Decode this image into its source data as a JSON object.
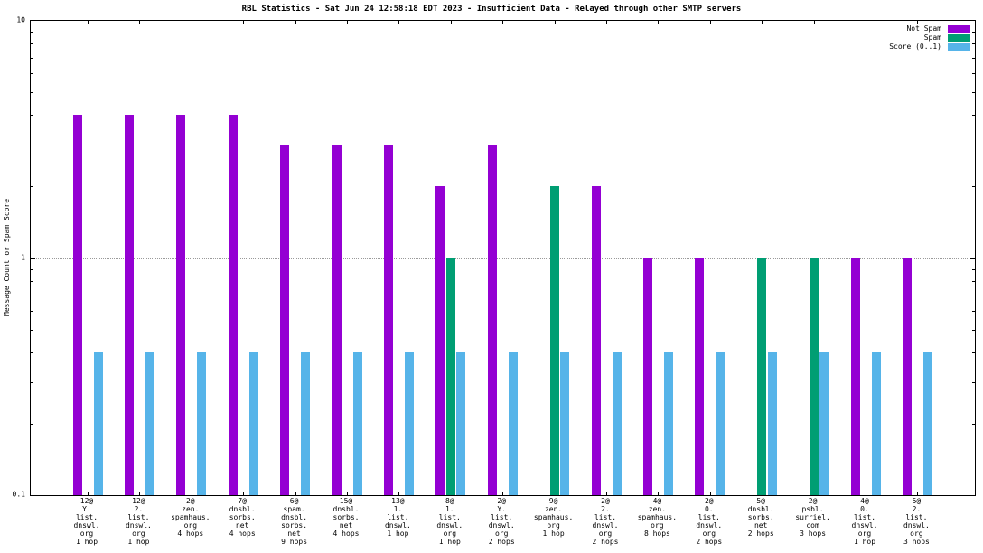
{
  "chart_data": {
    "type": "bar",
    "title": "RBL Statistics - Sat Jun 24 12:58:18 EDT 2023 - Insufficient Data - Relayed through other SMTP servers",
    "xlabel": "",
    "ylabel": "Message Count or Spam Score",
    "yscale": "log",
    "ylim": [
      0.1,
      10
    ],
    "grid": "dotted horizontal line at y=1",
    "legend_position": "top-right",
    "series_names": [
      "Not Spam",
      "Spam",
      "Score (0..1)"
    ],
    "series_colors": [
      "#9400d3",
      "#009e73",
      "#56b4e9"
    ],
    "y_ticks": [
      {
        "label": "10",
        "value": 10
      },
      {
        "label": "1",
        "value": 1
      },
      {
        "label": "0.1",
        "value": 0.1
      }
    ],
    "clusters": [
      {
        "label_lines": [
          "12@",
          "Y.",
          "list.",
          "dnswl.",
          "org",
          "1 hop"
        ],
        "not_spam": 4,
        "spam": null,
        "score": 0.4
      },
      {
        "label_lines": [
          "12@",
          "2.",
          "list.",
          "dnswl.",
          "org",
          "1 hop"
        ],
        "not_spam": 4,
        "spam": null,
        "score": 0.4
      },
      {
        "label_lines": [
          "2@",
          "zen.",
          "spamhaus.",
          "org",
          "4 hops"
        ],
        "not_spam": 4,
        "spam": null,
        "score": 0.4
      },
      {
        "label_lines": [
          "7@",
          "dnsbl.",
          "sorbs.",
          "net",
          "4 hops"
        ],
        "not_spam": 4,
        "spam": null,
        "score": 0.4
      },
      {
        "label_lines": [
          "6@",
          "spam.",
          "dnsbl.",
          "sorbs.",
          "net",
          "9 hops"
        ],
        "not_spam": 3,
        "spam": null,
        "score": 0.4
      },
      {
        "label_lines": [
          "15@",
          "dnsbl.",
          "sorbs.",
          "net",
          "4 hops"
        ],
        "not_spam": 3,
        "spam": null,
        "score": 0.4
      },
      {
        "label_lines": [
          "13@",
          "1.",
          "list.",
          "dnswl.",
          "1 hop"
        ],
        "not_spam": 3,
        "spam": null,
        "score": 0.4
      },
      {
        "label_lines": [
          "8@",
          "1.",
          "list.",
          "dnswl.",
          "org",
          "1 hop"
        ],
        "not_spam": 2,
        "spam": 1,
        "score": 0.4
      },
      {
        "label_lines": [
          "2@",
          "Y.",
          "list.",
          "dnswl.",
          "org",
          "2 hops"
        ],
        "not_spam": 3,
        "spam": null,
        "score": 0.4
      },
      {
        "label_lines": [
          "9@",
          "zen.",
          "spamhaus.",
          "org",
          "1 hop"
        ],
        "not_spam": null,
        "spam": 2,
        "score": 0.4
      },
      {
        "label_lines": [
          "2@",
          "2.",
          "list.",
          "dnswl.",
          "org",
          "2 hops"
        ],
        "not_spam": 2,
        "spam": null,
        "score": 0.4
      },
      {
        "label_lines": [
          "4@",
          "zen.",
          "spamhaus.",
          "org",
          "8 hops"
        ],
        "not_spam": 1,
        "spam": null,
        "score": 0.4
      },
      {
        "label_lines": [
          "2@",
          "0.",
          "list.",
          "dnswl.",
          "org",
          "2 hops"
        ],
        "not_spam": 1,
        "spam": null,
        "score": 0.4
      },
      {
        "label_lines": [
          "5@",
          "dnsbl.",
          "sorbs.",
          "net",
          "2 hops"
        ],
        "not_spam": null,
        "spam": 1,
        "score": 0.4
      },
      {
        "label_lines": [
          "2@",
          "psbl.",
          "surriel.",
          "com",
          "3 hops"
        ],
        "not_spam": null,
        "spam": 1,
        "score": 0.4
      },
      {
        "label_lines": [
          "4@",
          "0.",
          "list.",
          "dnswl.",
          "org",
          "1 hop"
        ],
        "not_spam": 1,
        "spam": null,
        "score": 0.4
      },
      {
        "label_lines": [
          "5@",
          "2.",
          "list.",
          "dnswl.",
          "org",
          "3 hops"
        ],
        "not_spam": 1,
        "spam": null,
        "score": 0.4
      }
    ]
  }
}
